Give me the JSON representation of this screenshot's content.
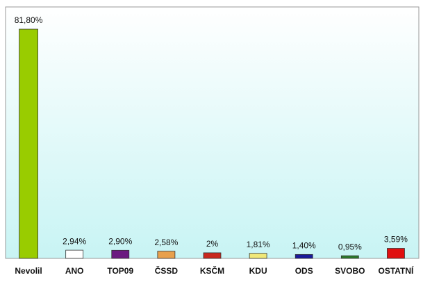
{
  "chart_data": {
    "type": "bar",
    "categories": [
      "Nevolil",
      "ANO",
      "TOP09",
      "ČSSD",
      "KSČM",
      "KDU",
      "ODS",
      "SVOBO",
      "OSTATNÍ"
    ],
    "values": [
      81.8,
      2.94,
      2.9,
      2.58,
      2,
      1.81,
      1.4,
      0.95,
      3.59
    ],
    "value_labels": [
      "81,80%",
      "2,94%",
      "2,90%",
      "2,58%",
      "2%",
      "1,81%",
      "1,40%",
      "0,95%",
      "3,59%"
    ],
    "colors": [
      "#99cc00",
      "#ffffff",
      "#6b1a80",
      "#e8a04c",
      "#c8281e",
      "#f0e878",
      "#1a1a9a",
      "#2a7a2a",
      "#e01010"
    ]
  }
}
